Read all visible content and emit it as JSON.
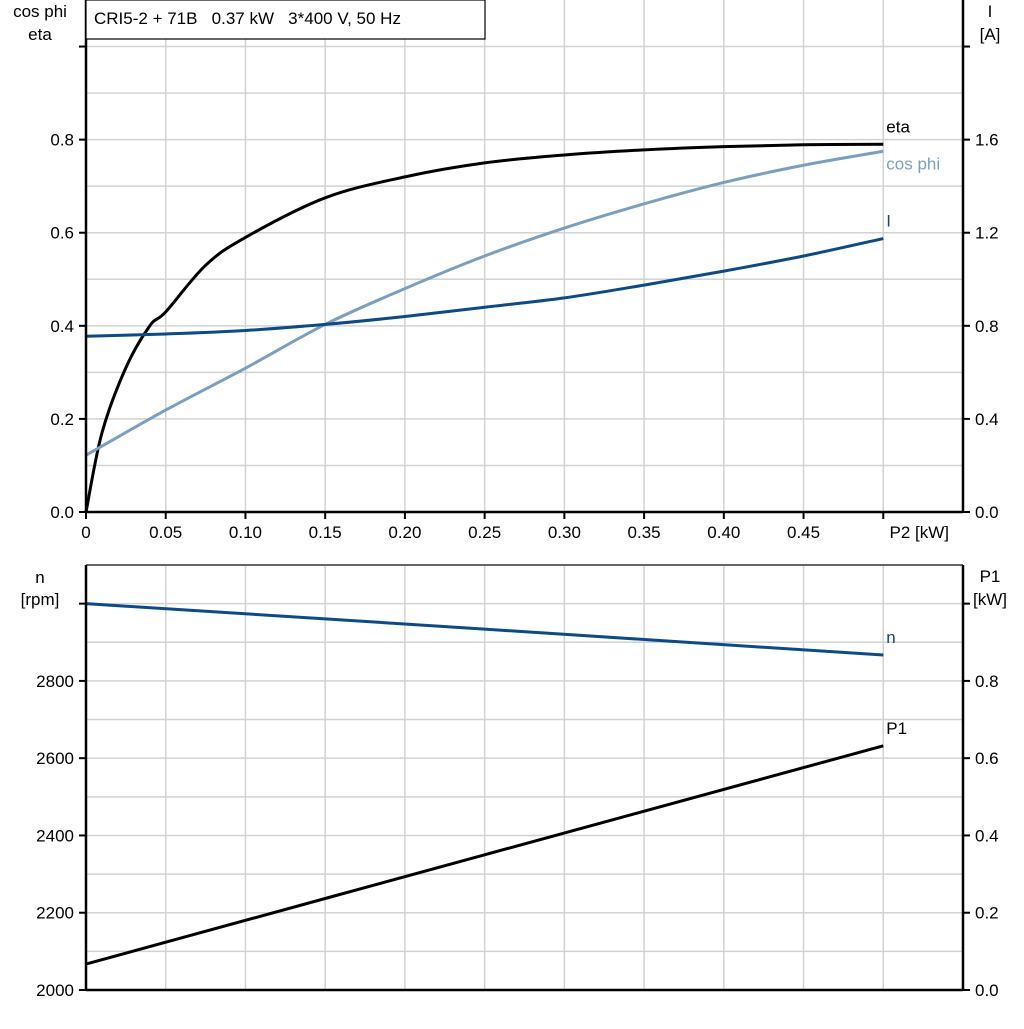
{
  "title": "CRI5-2 + 71B   0.37 kW   3*400 V, 50 Hz",
  "chart_data": [
    {
      "type": "line",
      "xlabel": "P2 [kW]",
      "ylabel_left": [
        "cos phi",
        "eta"
      ],
      "ylabel_right": [
        "I",
        "[A]"
      ],
      "xlim": [
        0,
        0.55
      ],
      "ylim_left": [
        0,
        1.1
      ],
      "ylim_right": [
        0,
        2.2
      ],
      "x_ticks": [
        "0",
        "0.05",
        "0.10",
        "0.15",
        "0.20",
        "0.25",
        "0.30",
        "0.35",
        "0.40",
        "0.45"
      ],
      "y_ticks_left": [
        "0.0",
        "0.2",
        "0.4",
        "0.6",
        "0.8"
      ],
      "y_ticks_right": [
        "0.0",
        "0.4",
        "0.8",
        "1.2",
        "1.6"
      ],
      "grid": true,
      "series": [
        {
          "name": "eta",
          "axis": "left",
          "color": "#000000",
          "x": [
            0,
            0.01,
            0.025,
            0.04,
            0.05,
            0.075,
            0.1,
            0.15,
            0.2,
            0.25,
            0.3,
            0.35,
            0.4,
            0.45,
            0.5
          ],
          "y": [
            0,
            0.17,
            0.31,
            0.4,
            0.43,
            0.53,
            0.59,
            0.675,
            0.72,
            0.75,
            0.767,
            0.778,
            0.785,
            0.789,
            0.79
          ]
        },
        {
          "name": "cos phi",
          "axis": "left",
          "color": "#7b9fbf",
          "x": [
            0,
            0.05,
            0.1,
            0.15,
            0.2,
            0.25,
            0.3,
            0.35,
            0.4,
            0.45,
            0.5
          ],
          "y": [
            0.122,
            0.219,
            0.309,
            0.403,
            0.48,
            0.55,
            0.61,
            0.662,
            0.708,
            0.745,
            0.775
          ]
        },
        {
          "name": "I",
          "axis": "right",
          "color": "#0e4a86",
          "x": [
            0,
            0.05,
            0.1,
            0.15,
            0.2,
            0.25,
            0.3,
            0.35,
            0.4,
            0.45,
            0.5
          ],
          "y": [
            0.755,
            0.765,
            0.78,
            0.806,
            0.84,
            0.88,
            0.92,
            0.975,
            1.035,
            1.1,
            1.175
          ]
        }
      ]
    },
    {
      "type": "line",
      "ylabel_left": [
        "n",
        "[rpm]"
      ],
      "ylabel_right": [
        "P1",
        "[kW]"
      ],
      "xlim": [
        0,
        0.55
      ],
      "ylim_left": [
        2000,
        3100
      ],
      "ylim_right": [
        0,
        1.1
      ],
      "y_ticks_left": [
        "2000",
        "2200",
        "2400",
        "2600",
        "2800"
      ],
      "y_ticks_right": [
        "0.0",
        "0.2",
        "0.4",
        "0.6",
        "0.8"
      ],
      "grid": true,
      "series": [
        {
          "name": "n",
          "axis": "left",
          "color": "#0e4a86",
          "x": [
            0,
            0.25,
            0.5
          ],
          "y": [
            3000,
            2934,
            2867
          ]
        },
        {
          "name": "P1",
          "axis": "right",
          "color": "#000000",
          "x": [
            0,
            0.25,
            0.5
          ],
          "y": [
            0.067,
            0.35,
            0.632
          ]
        }
      ]
    }
  ]
}
